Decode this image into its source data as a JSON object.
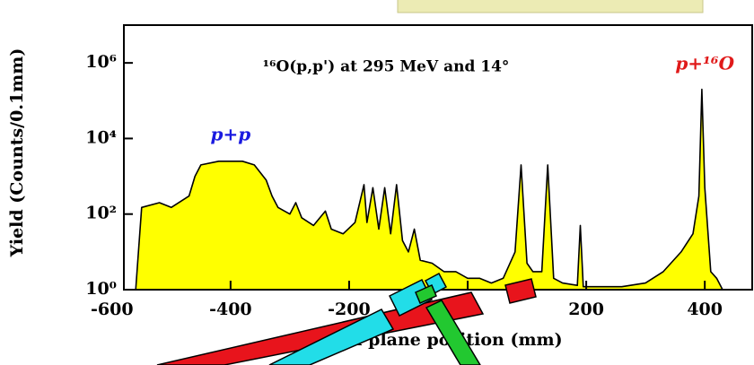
{
  "chart_data": {
    "type": "area",
    "title": "¹⁶O(p,p') at 295 MeV and 14°",
    "x_label": "Focal plane position (mm)",
    "y_label": "Yield (Counts/0.1mm)",
    "log_y": true,
    "grid": false,
    "xlim": [
      -580,
      480
    ],
    "ylim": [
      1,
      10000000
    ],
    "xticks": [
      -600,
      -400,
      -200,
      0,
      200,
      400
    ],
    "yticks": [
      {
        "value": 1,
        "label": "10⁰"
      },
      {
        "value": 100,
        "label": "10²"
      },
      {
        "value": 10000,
        "label": "10⁴"
      },
      {
        "value": 1000000,
        "label": "10⁶"
      }
    ],
    "x": [
      -560,
      -550,
      -520,
      -500,
      -470,
      -460,
      -450,
      -420,
      -380,
      -360,
      -340,
      -330,
      -320,
      -300,
      -290,
      -280,
      -260,
      -240,
      -230,
      -210,
      -190,
      -175,
      -170,
      -160,
      -150,
      -140,
      -130,
      -120,
      -110,
      -100,
      -90,
      -80,
      -60,
      -40,
      -20,
      0,
      20,
      40,
      60,
      80,
      90,
      100,
      110,
      125,
      135,
      145,
      160,
      185,
      190,
      195,
      220,
      260,
      300,
      330,
      360,
      380,
      390,
      395,
      400,
      410,
      420,
      430
    ],
    "series": [
      {
        "name": "Yield",
        "color": "#ffff00",
        "line_color": "#000000",
        "values": [
          1,
          150,
          200,
          150,
          300,
          1000,
          2000,
          2500,
          2500,
          2000,
          800,
          300,
          150,
          100,
          200,
          80,
          50,
          120,
          40,
          30,
          60,
          600,
          60,
          500,
          40,
          500,
          30,
          600,
          20,
          10,
          40,
          6,
          5,
          3,
          3,
          2,
          2,
          1.5,
          2,
          10,
          2000,
          5,
          3,
          3,
          2000,
          2,
          1.5,
          1.3,
          50,
          1.2,
          1.2,
          1.2,
          1.5,
          3,
          10,
          30,
          300,
          200000,
          500,
          3,
          2,
          1
        ]
      }
    ],
    "annotations": [
      {
        "text": "p+p",
        "x": -400,
        "y": 12000,
        "color": "#1a1ae0"
      },
      {
        "text": "p+¹⁶O",
        "x": 400,
        "y": 900000,
        "color": "#e01a1a"
      }
    ]
  }
}
